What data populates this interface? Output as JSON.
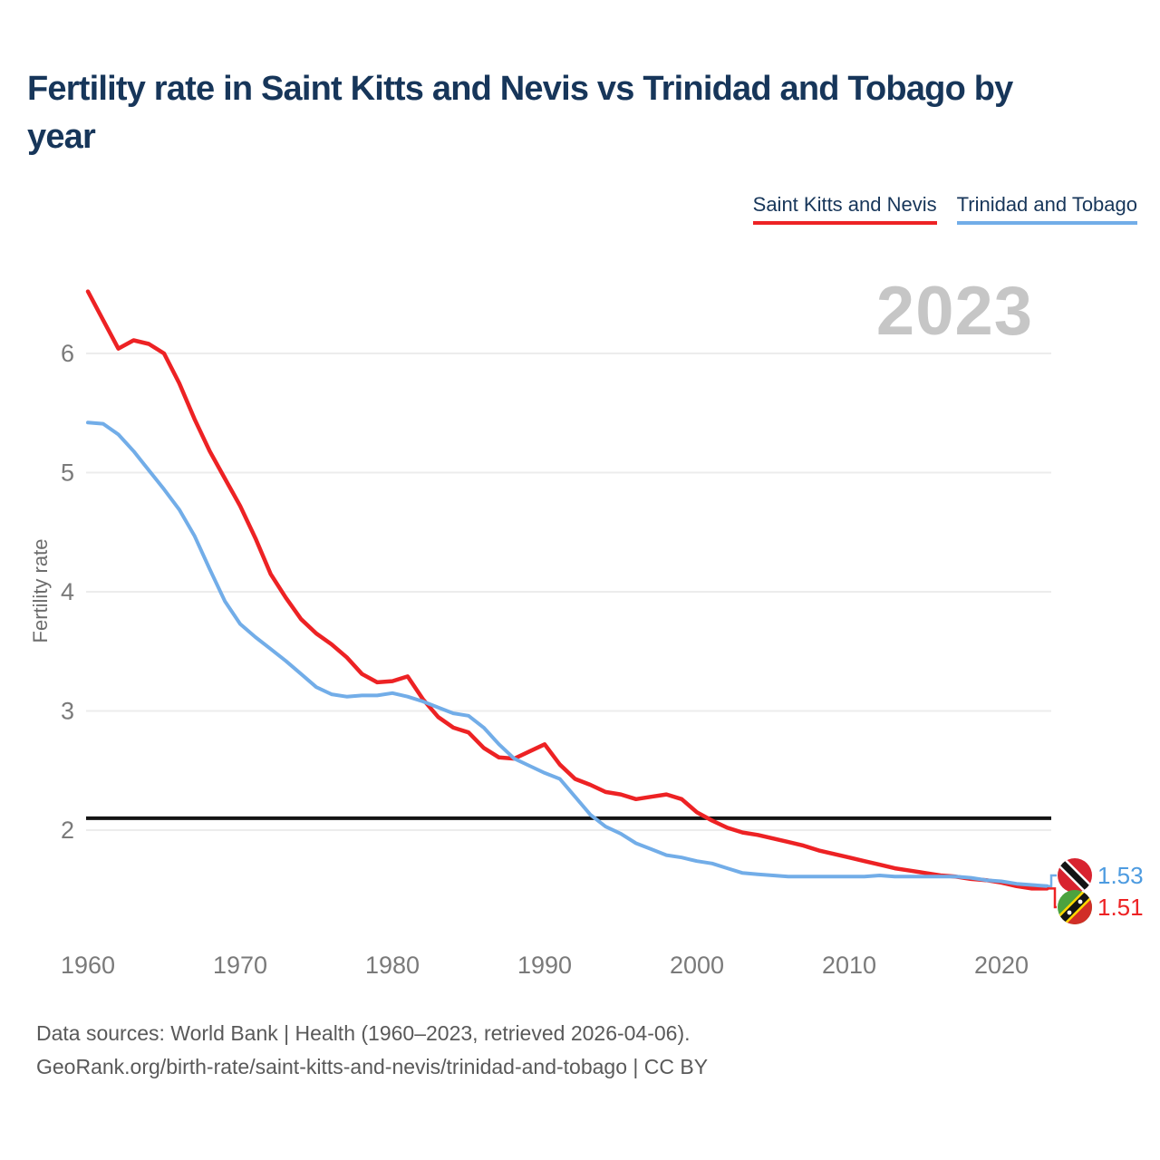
{
  "title": "Fertility rate in Saint Kitts and Nevis vs Trinidad and Tobago by year",
  "watermark_year": "2023",
  "legend": [
    {
      "label": "Saint Kitts and Nevis",
      "color": "#ed2224"
    },
    {
      "label": "Trinidad and Tobago",
      "color": "#72ade8"
    }
  ],
  "chart_data": {
    "type": "line",
    "title": "Fertility rate in Saint Kitts and Nevis vs Trinidad and Tobago by year",
    "xlabel": "",
    "ylabel": "Fertility rate",
    "xticks": [
      1960,
      1970,
      1980,
      1990,
      2000,
      2010,
      2020
    ],
    "yticks": [
      2,
      3,
      4,
      5,
      6
    ],
    "ylim": [
      1.3,
      6.6
    ],
    "xlim": [
      1960,
      2023
    ],
    "grid": "horizontal",
    "reference_line": {
      "value": 2.1,
      "color": "#141414"
    },
    "x": [
      1960,
      1961,
      1962,
      1963,
      1964,
      1965,
      1966,
      1967,
      1968,
      1969,
      1970,
      1971,
      1972,
      1973,
      1974,
      1975,
      1976,
      1977,
      1978,
      1979,
      1980,
      1981,
      1982,
      1983,
      1984,
      1985,
      1986,
      1987,
      1988,
      1989,
      1990,
      1991,
      1992,
      1993,
      1994,
      1995,
      1996,
      1997,
      1998,
      1999,
      2000,
      2001,
      2002,
      2003,
      2004,
      2005,
      2006,
      2007,
      2008,
      2009,
      2010,
      2011,
      2012,
      2013,
      2014,
      2015,
      2016,
      2017,
      2018,
      2019,
      2020,
      2021,
      2022,
      2023
    ],
    "series": [
      {
        "name": "Saint Kitts and Nevis",
        "color": "#ed2224",
        "values": [
          6.52,
          6.28,
          6.04,
          6.11,
          6.08,
          6.0,
          5.75,
          5.45,
          5.18,
          4.95,
          4.72,
          4.45,
          4.15,
          3.95,
          3.77,
          3.65,
          3.56,
          3.45,
          3.31,
          3.24,
          3.25,
          3.29,
          3.1,
          2.95,
          2.86,
          2.82,
          2.69,
          2.61,
          2.6,
          2.66,
          2.72,
          2.55,
          2.43,
          2.38,
          2.32,
          2.3,
          2.26,
          2.28,
          2.3,
          2.26,
          2.15,
          2.08,
          2.02,
          1.98,
          1.96,
          1.93,
          1.9,
          1.87,
          1.83,
          1.8,
          1.77,
          1.74,
          1.71,
          1.68,
          1.66,
          1.64,
          1.62,
          1.61,
          1.59,
          1.58,
          1.56,
          1.53,
          1.51,
          1.51
        ]
      },
      {
        "name": "Trinidad and Tobago",
        "color": "#72ade8",
        "values": [
          5.42,
          5.41,
          5.32,
          5.18,
          5.02,
          4.86,
          4.69,
          4.47,
          4.19,
          3.92,
          3.73,
          3.62,
          3.52,
          3.42,
          3.31,
          3.2,
          3.14,
          3.12,
          3.13,
          3.13,
          3.15,
          3.12,
          3.08,
          3.03,
          2.98,
          2.96,
          2.86,
          2.72,
          2.6,
          2.54,
          2.48,
          2.43,
          2.28,
          2.13,
          2.03,
          1.97,
          1.89,
          1.84,
          1.79,
          1.77,
          1.74,
          1.72,
          1.68,
          1.64,
          1.63,
          1.62,
          1.61,
          1.61,
          1.61,
          1.61,
          1.61,
          1.61,
          1.62,
          1.61,
          1.61,
          1.61,
          1.61,
          1.61,
          1.6,
          1.58,
          1.57,
          1.55,
          1.54,
          1.53
        ]
      }
    ],
    "end_labels": [
      {
        "series": "Trinidad and Tobago",
        "value": "1.53",
        "color": "#4d9be0",
        "flag": "trinidad-and-tobago-flag"
      },
      {
        "series": "Saint Kitts and Nevis",
        "value": "1.51",
        "color": "#ed2224",
        "flag": "saint-kitts-and-nevis-flag"
      }
    ]
  },
  "footer": {
    "line1": "Data sources: World Bank | Health (1960–2023, retrieved 2026-04-06).",
    "line2": "GeoRank.org/birth-rate/saint-kitts-and-nevis/trinidad-and-tobago | CC BY"
  }
}
